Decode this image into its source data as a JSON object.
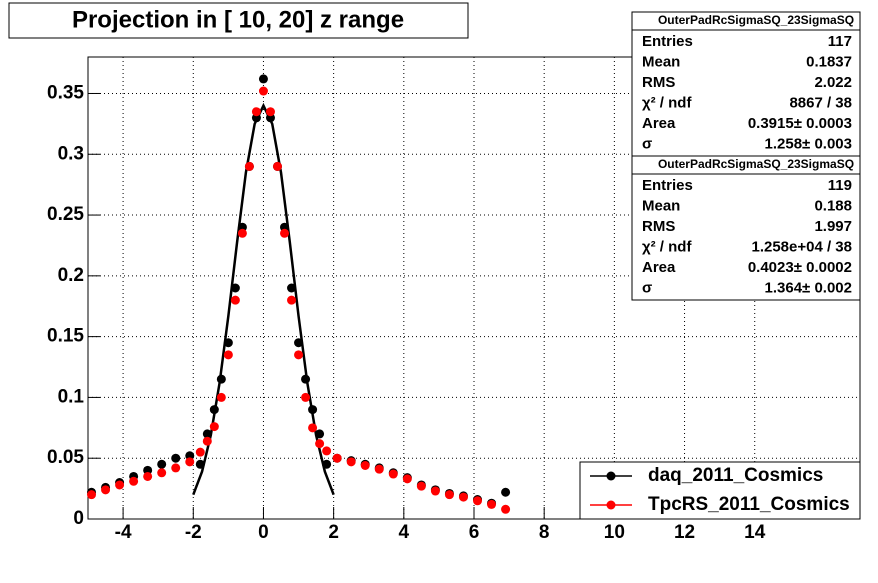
{
  "chart_data": {
    "type": "scatter",
    "title": "Projection in [  10,  20] z range",
    "x": [
      -4.9,
      -4.5,
      -4.1,
      -3.7,
      -3.3,
      -2.9,
      -2.5,
      -2.1,
      -1.8,
      -1.6,
      -1.4,
      -1.2,
      -1.0,
      -0.8,
      -0.6,
      -0.4,
      -0.2,
      0,
      0.2,
      0.4,
      0.6,
      0.8,
      1.0,
      1.2,
      1.4,
      1.6,
      1.8,
      2.1,
      2.5,
      2.9,
      3.3,
      3.7,
      4.1,
      4.5,
      4.9,
      5.3,
      5.7,
      6.1,
      6.5,
      6.9
    ],
    "series": [
      {
        "name": "daq_2011_Cosmics",
        "color": "#000000",
        "values": [
          0.022,
          0.026,
          0.03,
          0.035,
          0.04,
          0.045,
          0.05,
          0.052,
          0.045,
          0.07,
          0.09,
          0.115,
          0.145,
          0.19,
          0.24,
          0.29,
          0.33,
          0.362,
          0.33,
          0.29,
          0.24,
          0.19,
          0.145,
          0.115,
          0.09,
          0.07,
          0.045,
          0.05,
          0.048,
          0.045,
          0.042,
          0.038,
          0.034,
          0.028,
          0.024,
          0.021,
          0.019,
          0.016,
          0.013,
          0.022
        ],
        "fit": {
          "x": [
            -2,
            -1.75,
            -1.5,
            -1.25,
            -1,
            -0.75,
            -0.5,
            -0.25,
            0,
            0.25,
            0.5,
            0.75,
            1,
            1.25,
            1.5,
            1.75,
            2
          ],
          "values": [
            0.02,
            0.039,
            0.069,
            0.112,
            0.167,
            0.228,
            0.285,
            0.325,
            0.34,
            0.325,
            0.285,
            0.228,
            0.167,
            0.112,
            0.069,
            0.039,
            0.02
          ]
        }
      },
      {
        "name": "TpcRS_2011_Cosmics",
        "color": "#ff0000",
        "values": [
          0.02,
          0.024,
          0.028,
          0.031,
          0.035,
          0.038,
          0.042,
          0.047,
          0.055,
          0.064,
          0.076,
          0.1,
          0.135,
          0.18,
          0.235,
          0.29,
          0.335,
          0.352,
          0.335,
          0.29,
          0.235,
          0.18,
          0.135,
          0.1,
          0.075,
          0.062,
          0.056,
          0.05,
          0.047,
          0.044,
          0.041,
          0.037,
          0.033,
          0.027,
          0.023,
          0.02,
          0.018,
          0.015,
          0.012,
          0.008
        ]
      }
    ],
    "xlim": [
      -5,
      17
    ],
    "xticks": [
      -4,
      -2,
      0,
      2,
      4,
      6,
      8,
      10,
      12,
      14
    ],
    "ylim": [
      0,
      0.38
    ],
    "yticks": [
      0,
      0.05,
      0.1,
      0.15,
      0.2,
      0.25,
      0.3,
      0.35
    ],
    "grid": true,
    "stats": [
      {
        "title": "OuterPadRcSigmaSQ_23SigmaSQ",
        "rows": [
          {
            "label": "Entries",
            "value": "117"
          },
          {
            "label": "Mean",
            "value": "0.1837"
          },
          {
            "label": "RMS",
            "value": "2.022"
          },
          {
            "label": "χ² / ndf",
            "value": "8867 / 38"
          },
          {
            "label": "Area",
            "value": "0.3915± 0.0003"
          },
          {
            "label": "σ",
            "value": "1.258± 0.003"
          }
        ]
      },
      {
        "title": "OuterPadRcSigmaSQ_23SigmaSQ",
        "rows": [
          {
            "label": "Entries",
            "value": "119"
          },
          {
            "label": "Mean",
            "value": "0.188"
          },
          {
            "label": "RMS",
            "value": "1.997"
          },
          {
            "label": "χ² / ndf",
            "value": "1.258e+04 / 38"
          },
          {
            "label": "Area",
            "value": "0.4023± 0.0002"
          },
          {
            "label": "σ",
            "value": "1.364± 0.002"
          }
        ]
      }
    ]
  }
}
